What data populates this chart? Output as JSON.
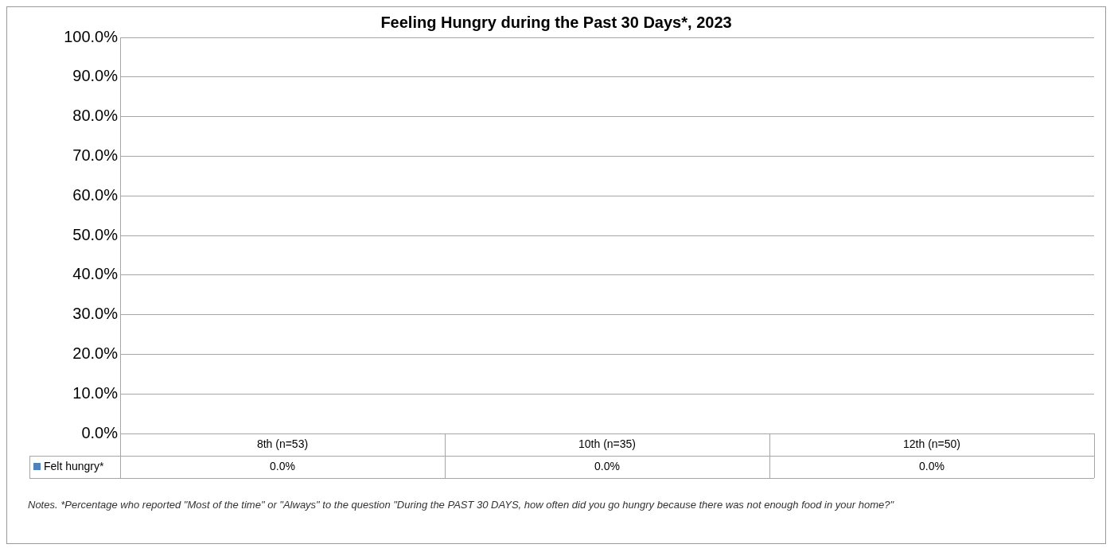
{
  "chart_data": {
    "type": "bar",
    "title": "Feeling Hungry during the Past 30 Days*, 2023",
    "categories": [
      "8th (n=53)",
      "10th (n=35)",
      "12th (n=50)"
    ],
    "series": [
      {
        "name": "Felt hungry*",
        "color": "#4f81bd",
        "values": [
          0,
          0,
          0
        ],
        "value_labels": [
          "0.0%",
          "0.0%",
          "0.0%"
        ]
      }
    ],
    "ylim": [
      0,
      100
    ],
    "yticks": [
      {
        "value": 0,
        "label": "0.0%"
      },
      {
        "value": 10,
        "label": "10.0%"
      },
      {
        "value": 20,
        "label": "20.0%"
      },
      {
        "value": 30,
        "label": "30.0%"
      },
      {
        "value": 40,
        "label": "40.0%"
      },
      {
        "value": 50,
        "label": "50.0%"
      },
      {
        "value": 60,
        "label": "60.0%"
      },
      {
        "value": 70,
        "label": "70.0%"
      },
      {
        "value": 80,
        "label": "80.0%"
      },
      {
        "value": 90,
        "label": "90.0%"
      },
      {
        "value": 100,
        "label": "100.0%"
      }
    ],
    "grid": "y",
    "legend": "bottom",
    "annotations": [
      "Notes. *Percentage who reported \"Most of the time\" or \"Always\" to the question \"During the PAST 30 DAYS, how often did you go hungry because there was not enough food in your home?\""
    ]
  }
}
